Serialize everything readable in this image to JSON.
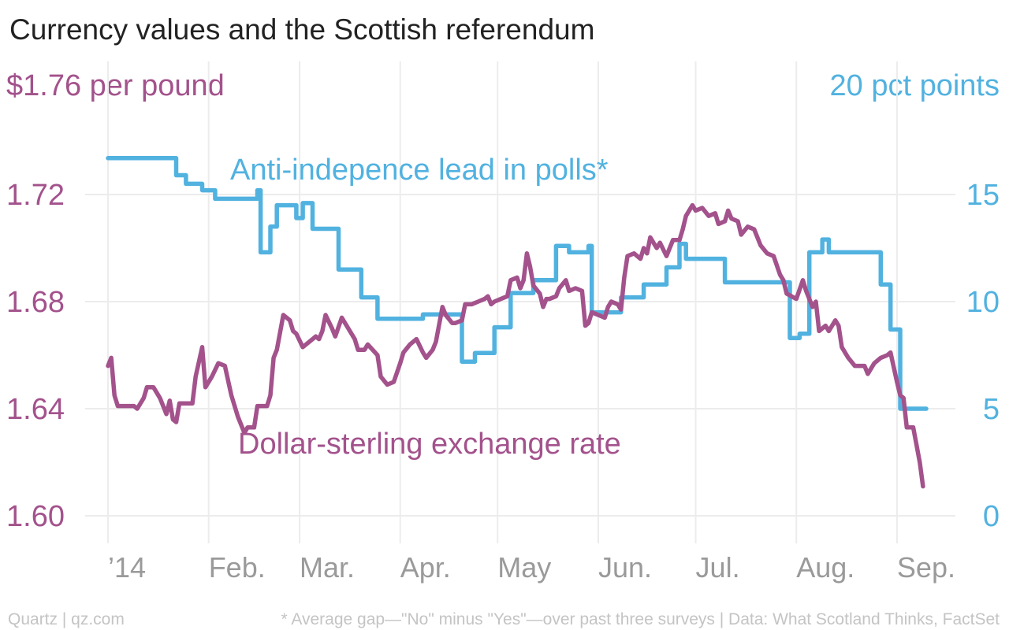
{
  "title": "Currency values and the Scottish referendum",
  "footer": {
    "source": "Quartz | qz.com",
    "note": "* Average gap—\"No\" minus \"Yes\"—over past three surveys | Data: What Scotland Thinks, FactSet"
  },
  "chart_data": {
    "type": "line",
    "title": "Currency values and the Scottish referendum",
    "colors": {
      "rate": "#a3528c",
      "polls": "#51b2e0",
      "grid": "#ececec",
      "xlabel": "#9a9a9a"
    },
    "x_axis": {
      "type": "date",
      "range": [
        "2014-01-01",
        "2014-09-10"
      ],
      "ticks": [
        {
          "date": "2014-01-01",
          "label": "’14"
        },
        {
          "date": "2014-02-01",
          "label": "Feb."
        },
        {
          "date": "2014-03-01",
          "label": "Mar."
        },
        {
          "date": "2014-04-01",
          "label": "Apr."
        },
        {
          "date": "2014-05-01",
          "label": "May"
        },
        {
          "date": "2014-06-01",
          "label": "Jun."
        },
        {
          "date": "2014-07-01",
          "label": "Jul."
        },
        {
          "date": "2014-08-01",
          "label": "Aug."
        },
        {
          "date": "2014-09-01",
          "label": "Sep."
        }
      ]
    },
    "y_left": {
      "label": "$1.76 per pound",
      "range": [
        1.6,
        1.76
      ],
      "ticks": [
        {
          "v": 1.6,
          "label": "1.60"
        },
        {
          "v": 1.64,
          "label": "1.64"
        },
        {
          "v": 1.68,
          "label": "1.68"
        },
        {
          "v": 1.72,
          "label": "1.72"
        }
      ]
    },
    "y_right": {
      "label": "20 pct points",
      "range": [
        0,
        20
      ],
      "ticks": [
        {
          "v": 0,
          "label": "0"
        },
        {
          "v": 5,
          "label": "5"
        },
        {
          "v": 10,
          "label": "10"
        },
        {
          "v": 15,
          "label": "15"
        }
      ]
    },
    "grid": true,
    "series": [
      {
        "name": "Dollar-sterling exchange rate",
        "axis": "left",
        "step": false,
        "points": [
          [
            "2014-01-01",
            1.656
          ],
          [
            "2014-01-02",
            1.659
          ],
          [
            "2014-01-03",
            1.645
          ],
          [
            "2014-01-04",
            1.641
          ],
          [
            "2014-01-07",
            1.641
          ],
          [
            "2014-01-09",
            1.641
          ],
          [
            "2014-01-10",
            1.64
          ],
          [
            "2014-01-12",
            1.644
          ],
          [
            "2014-01-13",
            1.648
          ],
          [
            "2014-01-15",
            1.648
          ],
          [
            "2014-01-17",
            1.644
          ],
          [
            "2014-01-18",
            1.641
          ],
          [
            "2014-01-19",
            1.638
          ],
          [
            "2014-01-20",
            1.643
          ],
          [
            "2014-01-21",
            1.636
          ],
          [
            "2014-01-22",
            1.635
          ],
          [
            "2014-01-23",
            1.642
          ],
          [
            "2014-01-25",
            1.642
          ],
          [
            "2014-01-27",
            1.642
          ],
          [
            "2014-01-28",
            1.652
          ],
          [
            "2014-01-30",
            1.663
          ],
          [
            "2014-01-31",
            1.648
          ],
          [
            "2014-02-02",
            1.652
          ],
          [
            "2014-02-04",
            1.657
          ],
          [
            "2014-02-06",
            1.656
          ],
          [
            "2014-02-08",
            1.645
          ],
          [
            "2014-02-10",
            1.637
          ],
          [
            "2014-02-12",
            1.631
          ],
          [
            "2014-02-13",
            1.633
          ],
          [
            "2014-02-15",
            1.633
          ],
          [
            "2014-02-16",
            1.641
          ],
          [
            "2014-02-19",
            1.641
          ],
          [
            "2014-02-20",
            1.645
          ],
          [
            "2014-02-21",
            1.659
          ],
          [
            "2014-02-22",
            1.662
          ],
          [
            "2014-02-24",
            1.675
          ],
          [
            "2014-02-26",
            1.673
          ],
          [
            "2014-02-27",
            1.669
          ],
          [
            "2014-02-28",
            1.668
          ],
          [
            "2014-03-02",
            1.663
          ],
          [
            "2014-03-04",
            1.665
          ],
          [
            "2014-03-06",
            1.667
          ],
          [
            "2014-03-07",
            1.666
          ],
          [
            "2014-03-08",
            1.669
          ],
          [
            "2014-03-09",
            1.675
          ],
          [
            "2014-03-11",
            1.67
          ],
          [
            "2014-03-12",
            1.667
          ],
          [
            "2014-03-14",
            1.674
          ],
          [
            "2014-03-16",
            1.67
          ],
          [
            "2014-03-18",
            1.666
          ],
          [
            "2014-03-19",
            1.662
          ],
          [
            "2014-03-21",
            1.662
          ],
          [
            "2014-03-22",
            1.664
          ],
          [
            "2014-03-25",
            1.66
          ],
          [
            "2014-03-26",
            1.652
          ],
          [
            "2014-03-28",
            1.649
          ],
          [
            "2014-03-30",
            1.65
          ],
          [
            "2014-04-01",
            1.657
          ],
          [
            "2014-04-02",
            1.661
          ],
          [
            "2014-04-04",
            1.664
          ],
          [
            "2014-04-06",
            1.666
          ],
          [
            "2014-04-08",
            1.661
          ],
          [
            "2014-04-09",
            1.659
          ],
          [
            "2014-04-11",
            1.662
          ],
          [
            "2014-04-12",
            1.665
          ],
          [
            "2014-04-14",
            1.678
          ],
          [
            "2014-04-15",
            1.675
          ],
          [
            "2014-04-17",
            1.672
          ],
          [
            "2014-04-18",
            1.672
          ],
          [
            "2014-04-20",
            1.673
          ],
          [
            "2014-04-21",
            1.679
          ],
          [
            "2014-04-23",
            1.679
          ],
          [
            "2014-04-25",
            1.68
          ],
          [
            "2014-04-27",
            1.681
          ],
          [
            "2014-04-28",
            1.682
          ],
          [
            "2014-04-29",
            1.679
          ],
          [
            "2014-04-30",
            1.68
          ],
          [
            "2014-05-02",
            1.681
          ],
          [
            "2014-05-04",
            1.682
          ],
          [
            "2014-05-05",
            1.688
          ],
          [
            "2014-05-07",
            1.689
          ],
          [
            "2014-05-08",
            1.685
          ],
          [
            "2014-05-09",
            1.688
          ],
          [
            "2014-05-10",
            1.698
          ],
          [
            "2014-05-11",
            1.693
          ],
          [
            "2014-05-12",
            1.686
          ],
          [
            "2014-05-14",
            1.683
          ],
          [
            "2014-05-15",
            1.678
          ],
          [
            "2014-05-16",
            1.681
          ],
          [
            "2014-05-17",
            1.681
          ],
          [
            "2014-05-19",
            1.682
          ],
          [
            "2014-05-20",
            1.685
          ],
          [
            "2014-05-22",
            1.688
          ],
          [
            "2014-05-23",
            1.684
          ],
          [
            "2014-05-25",
            1.685
          ],
          [
            "2014-05-27",
            1.684
          ],
          [
            "2014-05-28",
            1.671
          ],
          [
            "2014-05-29",
            1.672
          ],
          [
            "2014-05-30",
            1.676
          ],
          [
            "2014-06-01",
            1.675
          ],
          [
            "2014-06-03",
            1.674
          ],
          [
            "2014-06-04",
            1.678
          ],
          [
            "2014-06-05",
            1.68
          ],
          [
            "2014-06-07",
            1.679
          ],
          [
            "2014-06-08",
            1.677
          ],
          [
            "2014-06-09",
            1.689
          ],
          [
            "2014-06-10",
            1.697
          ],
          [
            "2014-06-12",
            1.698
          ],
          [
            "2014-06-14",
            1.696
          ],
          [
            "2014-06-15",
            1.7
          ],
          [
            "2014-06-16",
            1.698
          ],
          [
            "2014-06-17",
            1.704
          ],
          [
            "2014-06-19",
            1.7
          ],
          [
            "2014-06-20",
            1.702
          ],
          [
            "2014-06-22",
            1.697
          ],
          [
            "2014-06-24",
            1.703
          ],
          [
            "2014-06-26",
            1.703
          ],
          [
            "2014-06-27",
            1.707
          ],
          [
            "2014-06-28",
            1.712
          ],
          [
            "2014-06-30",
            1.716
          ],
          [
            "2014-07-01",
            1.714
          ],
          [
            "2014-07-03",
            1.715
          ],
          [
            "2014-07-05",
            1.712
          ],
          [
            "2014-07-07",
            1.713
          ],
          [
            "2014-07-08",
            1.709
          ],
          [
            "2014-07-10",
            1.71
          ],
          [
            "2014-07-11",
            1.714
          ],
          [
            "2014-07-12",
            1.711
          ],
          [
            "2014-07-14",
            1.71
          ],
          [
            "2014-07-15",
            1.705
          ],
          [
            "2014-07-17",
            1.708
          ],
          [
            "2014-07-19",
            1.707
          ],
          [
            "2014-07-21",
            1.701
          ],
          [
            "2014-07-23",
            1.698
          ],
          [
            "2014-07-25",
            1.697
          ],
          [
            "2014-07-27",
            1.69
          ],
          [
            "2014-07-28",
            1.688
          ],
          [
            "2014-07-29",
            1.683
          ],
          [
            "2014-08-01",
            1.681
          ],
          [
            "2014-08-03",
            1.688
          ],
          [
            "2014-08-04",
            1.684
          ],
          [
            "2014-08-06",
            1.678
          ],
          [
            "2014-08-07",
            1.68
          ],
          [
            "2014-08-08",
            1.669
          ],
          [
            "2014-08-10",
            1.671
          ],
          [
            "2014-08-11",
            1.669
          ],
          [
            "2014-08-13",
            1.673
          ],
          [
            "2014-08-14",
            1.671
          ],
          [
            "2014-08-15",
            1.663
          ],
          [
            "2014-08-17",
            1.659
          ],
          [
            "2014-08-19",
            1.656
          ],
          [
            "2014-08-20",
            1.656
          ],
          [
            "2014-08-22",
            1.656
          ],
          [
            "2014-08-23",
            1.653
          ],
          [
            "2014-08-25",
            1.657
          ],
          [
            "2014-08-27",
            1.659
          ],
          [
            "2014-08-29",
            1.66
          ],
          [
            "2014-08-30",
            1.661
          ],
          [
            "2014-09-01",
            1.65
          ],
          [
            "2014-09-02",
            1.645
          ],
          [
            "2014-09-03",
            1.644
          ],
          [
            "2014-09-04",
            1.633
          ],
          [
            "2014-09-06",
            1.633
          ],
          [
            "2014-09-08",
            1.62
          ],
          [
            "2014-09-09",
            1.611
          ]
        ]
      },
      {
        "name": "Anti-indepence lead in polls*",
        "axis": "right",
        "step": true,
        "points": [
          [
            "2014-01-01",
            16.7
          ],
          [
            "2014-01-22",
            15.9
          ],
          [
            "2014-01-25",
            15.5
          ],
          [
            "2014-01-30",
            15.2
          ],
          [
            "2014-02-03",
            14.8
          ],
          [
            "2014-02-16",
            15.2
          ],
          [
            "2014-02-17",
            12.3
          ],
          [
            "2014-02-20",
            13.5
          ],
          [
            "2014-02-22",
            14.5
          ],
          [
            "2014-02-28",
            13.9
          ],
          [
            "2014-03-02",
            14.6
          ],
          [
            "2014-03-05",
            13.4
          ],
          [
            "2014-03-13",
            11.5
          ],
          [
            "2014-03-20",
            10.2
          ],
          [
            "2014-03-25",
            9.2
          ],
          [
            "2014-04-08",
            9.4
          ],
          [
            "2014-04-20",
            7.2
          ],
          [
            "2014-04-24",
            7.6
          ],
          [
            "2014-04-30",
            8.8
          ],
          [
            "2014-05-05",
            10.4
          ],
          [
            "2014-05-12",
            11.0
          ],
          [
            "2014-05-19",
            12.6
          ],
          [
            "2014-05-23",
            12.3
          ],
          [
            "2014-05-29",
            12.6
          ],
          [
            "2014-05-30",
            9.5
          ],
          [
            "2014-06-08",
            10.2
          ],
          [
            "2014-06-15",
            10.8
          ],
          [
            "2014-06-22",
            11.6
          ],
          [
            "2014-06-26",
            12.7
          ],
          [
            "2014-06-28",
            12.0
          ],
          [
            "2014-07-05",
            12.0
          ],
          [
            "2014-07-10",
            10.9
          ],
          [
            "2014-07-20",
            10.9
          ],
          [
            "2014-07-30",
            8.3
          ],
          [
            "2014-08-02",
            8.5
          ],
          [
            "2014-08-05",
            12.3
          ],
          [
            "2014-08-09",
            12.9
          ],
          [
            "2014-08-11",
            12.3
          ],
          [
            "2014-08-27",
            10.8
          ],
          [
            "2014-08-30",
            8.7
          ],
          [
            "2014-09-02",
            5.0
          ],
          [
            "2014-09-10",
            5.0
          ]
        ]
      }
    ]
  }
}
